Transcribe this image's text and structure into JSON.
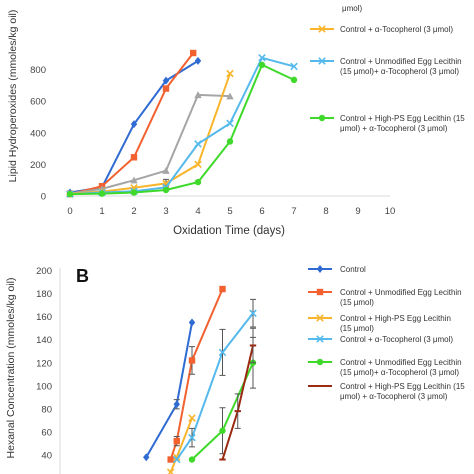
{
  "chart_data": [
    {
      "type": "line",
      "panel_label": "",
      "xlabel": "Oxidation Time (days)",
      "ylabel": "Lipid Hydroperoxides (mmoles/kg oil)",
      "xlim": [
        0,
        10
      ],
      "ylim": [
        0,
        900
      ],
      "x_ticks": [
        0,
        1,
        2,
        3,
        4,
        5,
        6,
        7,
        8,
        9,
        10
      ],
      "y_ticks": [
        0,
        200,
        400,
        600,
        800
      ],
      "grid": false,
      "legend_position": "right",
      "series": [
        {
          "name": "",
          "color": "#2f6bd3",
          "marker": "diamond",
          "in_legend": false,
          "x": [
            0,
            1,
            2,
            3,
            4
          ],
          "y": [
            22,
            55,
            455,
            730,
            855
          ]
        },
        {
          "name": "",
          "color": "#f2612f",
          "marker": "square",
          "in_legend": false,
          "x": [
            0,
            1,
            2,
            3,
            3.85
          ],
          "y": [
            12,
            62,
            245,
            680,
            905
          ]
        },
        {
          "name": "",
          "color": "#a5a5a5",
          "marker": "triangle",
          "in_legend": false,
          "x": [
            0,
            1,
            2,
            3,
            4,
            5
          ],
          "y": [
            15,
            45,
            100,
            160,
            640,
            632
          ]
        },
        {
          "name": "Control + α-Tocopherol (3 μmol)",
          "legend_lines": [
            "Control + α-Tocopherol (3 μmol)"
          ],
          "color": "#f8b52c",
          "marker": "x",
          "in_legend": true,
          "x": [
            0,
            1,
            2,
            3,
            4,
            5
          ],
          "y": [
            15,
            28,
            52,
            80,
            200,
            775
          ],
          "err_up": [
            0,
            0,
            0,
            25,
            0,
            0
          ],
          "err_down": [
            0,
            0,
            0,
            25,
            0,
            0
          ]
        },
        {
          "name": "Control + Unmodified Egg Lecithin (15 μmol)+ α-Tocopherol (3 μmol)",
          "legend_lines": [
            "Control + Unmodified Egg Lecithin",
            "(15 μmol)+ α-Tocopherol (3 μmol)"
          ],
          "color": "#55b9ec",
          "marker": "x",
          "in_legend": true,
          "x": [
            0,
            1,
            2,
            3,
            4,
            5,
            6,
            7
          ],
          "y": [
            12,
            22,
            30,
            55,
            330,
            460,
            875,
            820
          ]
        },
        {
          "name": "Control + High-PS Egg Lecithin (15 μmol) + α-Tocopherol (3 μmol)",
          "legend_lines": [
            "Control + High-PS Egg Lecithin (15",
            "μmol) + α-Tocopherol (3 μmol)"
          ],
          "color": "#3fd92b",
          "marker": "circle",
          "in_legend": true,
          "x": [
            0,
            1,
            2,
            3,
            4,
            5,
            6,
            7
          ],
          "y": [
            12,
            15,
            22,
            38,
            88,
            345,
            830,
            735
          ]
        }
      ],
      "legend_partial_top": "μmol)"
    },
    {
      "type": "line",
      "panel_label": "B",
      "xlabel": "",
      "ylabel": "Hexanal Concentration (mmoles/kg oil)",
      "ylim": [
        0,
        200
      ],
      "y_ticks": [
        40,
        60,
        80,
        100,
        120,
        140,
        160,
        180,
        200
      ],
      "grid": false,
      "legend_position": "right",
      "series": [
        {
          "name": "Control",
          "legend_lines": [
            "Control"
          ],
          "color": "#2f6bd3",
          "marker": "diamond",
          "x": [
            2.5,
            3.5,
            4
          ],
          "y": [
            38,
            84,
            155
          ],
          "err_up": [
            0,
            4,
            0
          ],
          "err_down": [
            0,
            4,
            0
          ]
        },
        {
          "name": "Control + Unmodified Egg Lecithin (15 μmol)",
          "legend_lines": [
            "Control + Unmodified Egg Lecithin",
            "(15 μmol)"
          ],
          "color": "#f2612f",
          "marker": "square",
          "x": [
            3.3,
            3.5,
            4,
            5
          ],
          "y": [
            36,
            52,
            122,
            184
          ],
          "err_up": [
            0,
            4,
            12,
            0
          ],
          "err_down": [
            0,
            4,
            12,
            0
          ]
        },
        {
          "name": "Control + High-PS Egg Lecithin (15 μmol)",
          "legend_lines": [
            "Control + High-PS Egg Lecithin",
            "(15 μmol)"
          ],
          "color": "#f8b52c",
          "marker": "x",
          "x": [
            3.3,
            3.5,
            4
          ],
          "y": [
            25,
            38,
            72
          ],
          "err_up": [
            0,
            0,
            0
          ],
          "err_down": [
            0,
            0,
            0
          ]
        },
        {
          "name": "Control + α-Tocopherol (3 μmol)",
          "legend_lines": [
            "Control + α-Tocopherol (3 μmol)"
          ],
          "color": "#55b9ec",
          "marker": "x",
          "x": [
            3.5,
            4,
            5,
            6
          ],
          "y": [
            36,
            55,
            129,
            163
          ],
          "err_up": [
            0,
            8,
            20,
            12
          ],
          "err_down": [
            0,
            8,
            20,
            12
          ]
        },
        {
          "name": "Control + Unmodified Egg Lecithin (15 μmol)+ α-Tocopherol (3 μmol)",
          "legend_lines": [
            "Control + Unmodified Egg Lecithin",
            "(15 μmol)+ α-Tocopherol (3 μmol)"
          ],
          "color": "#3fd92b",
          "marker": "circle",
          "x": [
            4,
            5,
            6
          ],
          "y": [
            36,
            61,
            120
          ],
          "err_up": [
            0,
            20,
            22
          ],
          "err_down": [
            0,
            20,
            22
          ]
        },
        {
          "name": "Control + High-PS Egg Lecithin (15 μmol) + α-Tocopherol (3 μmol)",
          "legend_lines": [
            "Control + High-PS Egg Lecithin (15",
            "μmol) + α-Tocopherol (3 μmol)"
          ],
          "color": "#9a2a12",
          "marker": "dash",
          "x": [
            5,
            5.5,
            6
          ],
          "y": [
            36,
            78,
            135
          ],
          "err_up": [
            0,
            15,
            15
          ],
          "err_down": [
            0,
            15,
            15
          ]
        }
      ]
    }
  ]
}
